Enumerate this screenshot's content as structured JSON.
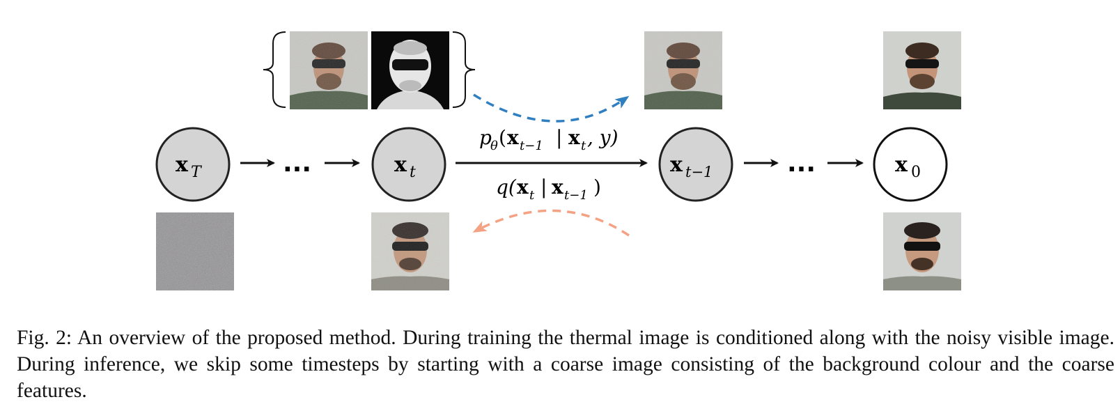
{
  "figure": {
    "nodes": [
      {
        "id": "xT",
        "base": "x",
        "sub": "T"
      },
      {
        "id": "xt",
        "base": "x",
        "sub": "t"
      },
      {
        "id": "xt1",
        "base": "x",
        "sub": "t−1"
      },
      {
        "id": "x0",
        "base": "x",
        "sub": "0"
      }
    ],
    "ellipsis": "...",
    "reverse_label": {
      "p": "p",
      "theta": "θ",
      "open": "(",
      "x1": "x",
      "sub1": "t−1",
      "bar": "|",
      "x2": "x",
      "sub2": "t",
      "rest": ", y)"
    },
    "forward_label": {
      "q": "q(",
      "x1": "x",
      "sub1": "t",
      "bar": "|",
      "x2": "x",
      "sub2": "t−1",
      "close": ")"
    },
    "colors": {
      "node_fill": "#d4d4d4",
      "node_stroke": "#222222",
      "blue_arrow": "#2f7fc1",
      "orange_arrow": "#f4a184"
    }
  },
  "caption": {
    "label": "Fig. 2:",
    "text": "An overview of the proposed method. During training the thermal image is conditioned along with the noisy visible image. During inference, we skip some timesteps by starting with a coarse image consisting of the background colour and the coarse features."
  }
}
